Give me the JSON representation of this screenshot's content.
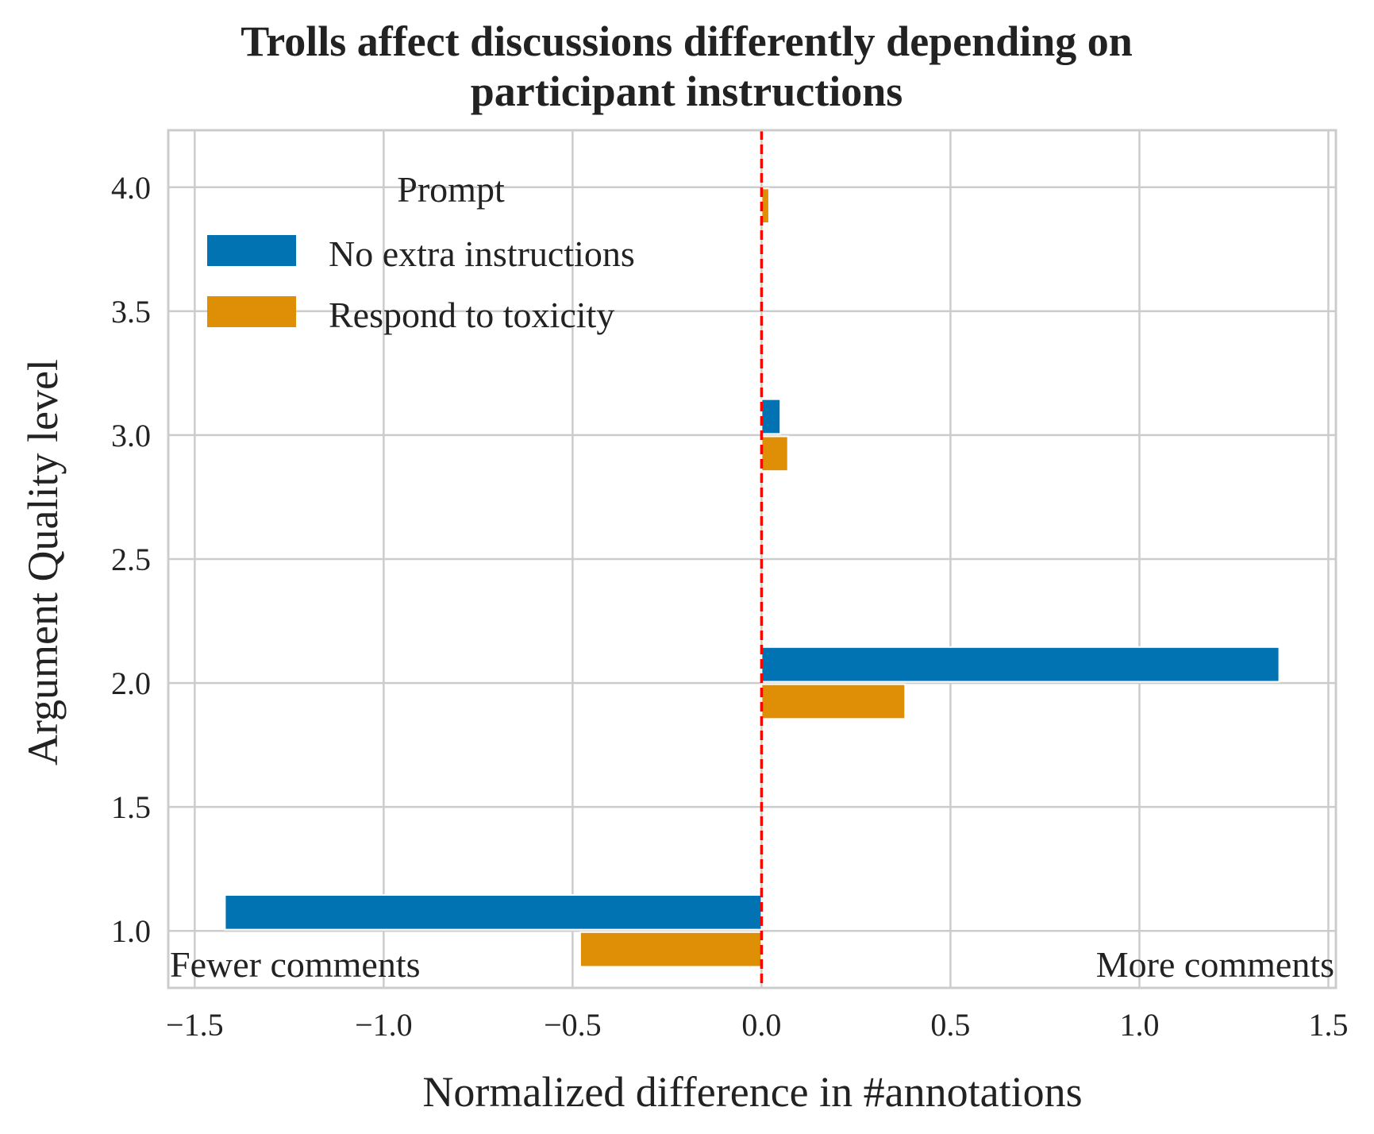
{
  "chart_data": {
    "type": "bar",
    "orientation": "horizontal",
    "title_lines": [
      "Trolls affect discussions differently depending on",
      "participant instructions"
    ],
    "xlabel": "Normalized difference in #annotations",
    "ylabel": "Argument Quality level",
    "xlim": [
      -1.57,
      1.52
    ],
    "ylim": [
      0.77,
      4.23
    ],
    "xticks": [
      -1.5,
      -1.0,
      -0.5,
      0.0,
      0.5,
      1.0,
      1.5
    ],
    "xtick_labels": [
      "−1.5",
      "−1.0",
      "−0.5",
      "0.0",
      "0.5",
      "1.0",
      "1.5"
    ],
    "yticks": [
      1.0,
      1.5,
      2.0,
      2.5,
      3.0,
      3.5,
      4.0
    ],
    "ytick_labels": [
      "1.0",
      "1.5",
      "2.0",
      "2.5",
      "3.0",
      "3.5",
      "4.0"
    ],
    "grid": true,
    "legend": {
      "title": "Prompt",
      "placement": "upper-left",
      "entries": [
        "No extra instructions",
        "Respond to toxicity"
      ]
    },
    "series": [
      {
        "name": "No extra instructions",
        "color": "#0173b2",
        "points": [
          {
            "y": 1.0,
            "x": -1.42
          },
          {
            "y": 2.0,
            "x": 1.37
          },
          {
            "y": 3.0,
            "x": 0.05
          }
        ]
      },
      {
        "name": "Respond to toxicity",
        "color": "#de8f05",
        "points": [
          {
            "y": 1.0,
            "x": -0.48
          },
          {
            "y": 2.0,
            "x": 0.38
          },
          {
            "y": 3.0,
            "x": 0.07
          },
          {
            "y": 4.0,
            "x": 0.02
          }
        ]
      }
    ],
    "reference_line": {
      "x": 0.0,
      "color": "#ff0000",
      "style": "dashed"
    },
    "annotations": {
      "left": "Fewer comments",
      "right": "More comments"
    },
    "colors": {
      "grid": "#cccccc",
      "frame": "#cccccc",
      "text": "#222222"
    }
  }
}
